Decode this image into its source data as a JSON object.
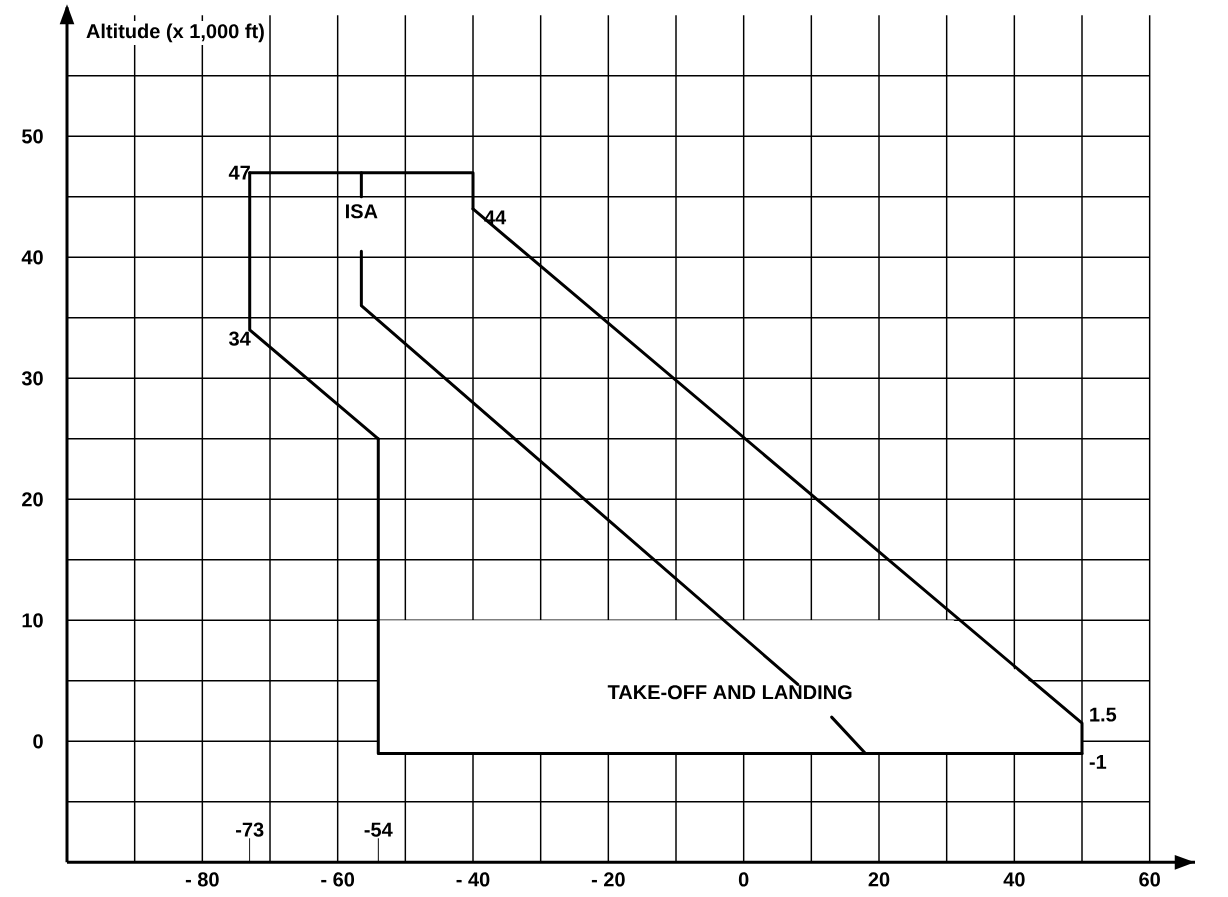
{
  "chart_data": {
    "type": "line",
    "ylabel": "Altitude (x 1,000 ft)",
    "xlim": [
      -100,
      60
    ],
    "ylim": [
      -10,
      60
    ],
    "xticks": [
      {
        "value": -90,
        "label": null
      },
      {
        "value": -80,
        "label": "- 80"
      },
      {
        "value": -70,
        "label": null
      },
      {
        "value": -60,
        "label": "- 60"
      },
      {
        "value": -50,
        "label": null
      },
      {
        "value": -40,
        "label": "- 40"
      },
      {
        "value": -30,
        "label": null
      },
      {
        "value": -20,
        "label": "- 20"
      },
      {
        "value": -10,
        "label": null
      },
      0,
      {
        "value": 10,
        "label": null
      },
      20,
      {
        "value": 30,
        "label": null
      },
      40,
      {
        "value": 50,
        "label": null
      },
      60
    ],
    "yticks": [
      {
        "value": -5,
        "label": null
      },
      0,
      {
        "value": 5,
        "label": null
      },
      10,
      {
        "value": 15,
        "label": null
      },
      20,
      {
        "value": 25,
        "label": null
      },
      30,
      {
        "value": 35,
        "label": null
      },
      40,
      {
        "value": 45,
        "label": null
      },
      50,
      {
        "value": 55,
        "label": null
      }
    ],
    "grid": true,
    "series": [
      {
        "name": "TAKE-OFF AND LANDING",
        "type": "area",
        "color": "#ffffff",
        "x": [
          -54,
          31,
          50,
          50,
          -54
        ],
        "values": [
          10,
          10,
          1.5,
          -1,
          -1
        ]
      },
      {
        "color": "#000000",
        "x": [
          -54,
          -73,
          -73
        ],
        "values": [
          25,
          34,
          47
        ]
      },
      {
        "color": "#000000",
        "x": [
          -73,
          -40,
          -40
        ],
        "values": [
          47,
          47,
          44
        ]
      },
      {
        "color": "#000000",
        "x": [
          -40,
          50,
          50
        ],
        "values": [
          44,
          1.5,
          -1
        ]
      },
      {
        "color": "#000000",
        "x": [
          50,
          -54,
          -54
        ],
        "values": [
          -1,
          -1,
          25
        ]
      },
      {
        "name": "ISA",
        "color": "#000000",
        "x": [
          -56.5,
          -56.5
        ],
        "values": [
          47,
          45
        ]
      },
      {
        "color": "#000000",
        "x": [
          -56.5,
          -56.5,
          8
        ],
        "values": [
          40.5,
          36,
          4.7
        ]
      },
      {
        "color": "#000000",
        "x": [
          13,
          18
        ],
        "values": [
          2,
          -1
        ]
      }
    ],
    "annotations": [
      {
        "text": "47",
        "x": -73,
        "y": 47
      },
      {
        "text": "44",
        "x": -40,
        "y": 44
      },
      {
        "text": "34",
        "x": -73,
        "y": 34
      },
      {
        "text": "1.5",
        "x": 50,
        "y": 1.5
      },
      {
        "text": "-1",
        "x": 50,
        "y": -1
      },
      "-73",
      "-54"
    ]
  }
}
